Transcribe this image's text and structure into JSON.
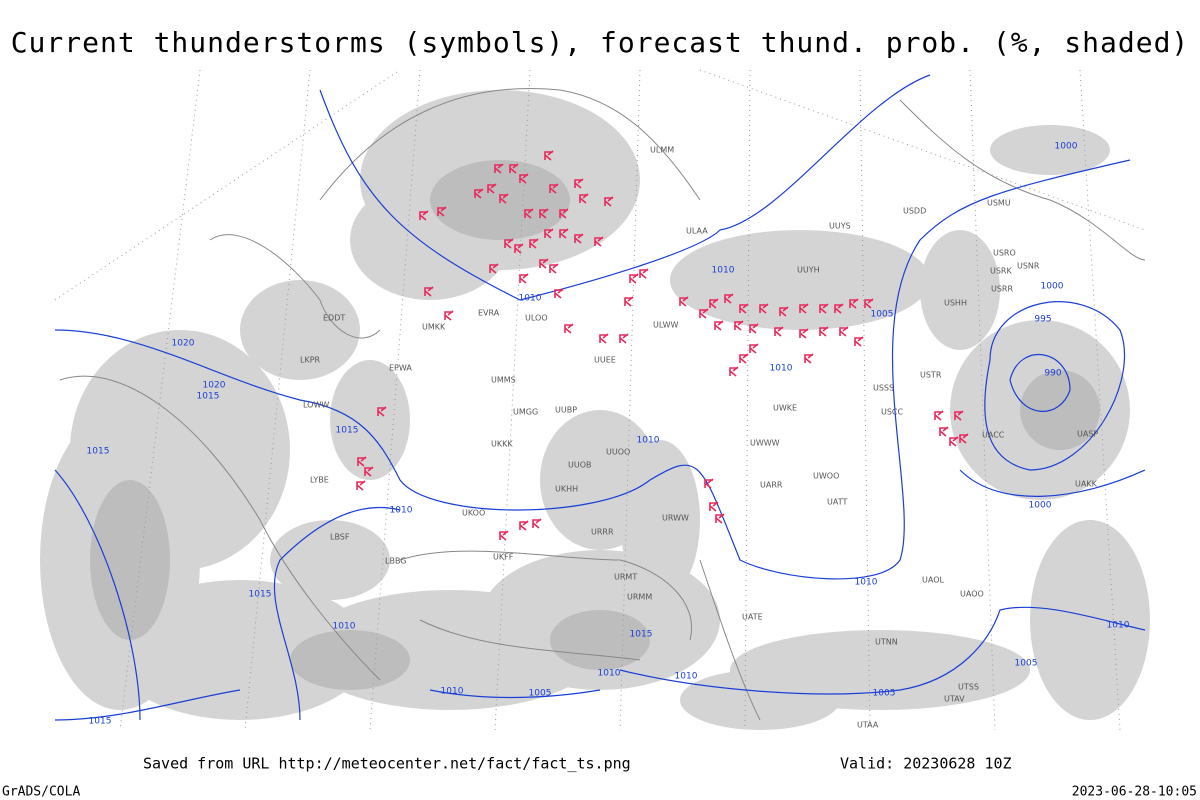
{
  "header": {
    "title": "Current thunderstorms (symbols), forecast thund. prob. (%, shaded)"
  },
  "footer": {
    "saved": "Saved from URL http://meteocenter.net/fact/fact_ts.png",
    "valid": "Valid: 20230628 10Z",
    "software": "GrADS/COLA",
    "timestamp": "2023-06-28-10:05"
  },
  "map": {
    "isobar_labels": [
      "1010",
      "1010",
      "1010",
      "1010",
      "1010",
      "1010",
      "1010",
      "1010",
      "1010",
      "1010",
      "1005",
      "1005",
      "1005",
      "1000",
      "1000",
      "1000",
      "995",
      "990",
      "1020",
      "1020",
      "1015",
      "1015",
      "1015",
      "1015",
      "1015",
      "1015",
      "1010",
      "1005"
    ],
    "stations": [
      "ULAA",
      "UUYS",
      "UUYH",
      "USDD",
      "USMU",
      "USRO",
      "USRK",
      "USNR",
      "USRR",
      "USHH",
      "ULOO",
      "EVRA",
      "UMKK",
      "ULWW",
      "UUEE",
      "UMMS",
      "UMGG",
      "UUBP",
      "UKKK",
      "UUOB",
      "UUOO",
      "UWWW",
      "UWKE",
      "USCC",
      "USSS",
      "USTR",
      "UACC",
      "UASP",
      "UAKK",
      "UATT",
      "UWOO",
      "UARR",
      "UKOO",
      "UKHH",
      "UKFF",
      "URRR",
      "URWW",
      "URMT",
      "URMM",
      "UATE",
      "UAOL",
      "UAOO",
      "UTNN",
      "UTAA",
      "UTSS",
      "UTAV",
      "LYBE",
      "LBSF",
      "LBBG",
      "EPWA",
      "EDDT",
      "LKPR",
      "LOWW",
      "ULMM"
    ]
  }
}
